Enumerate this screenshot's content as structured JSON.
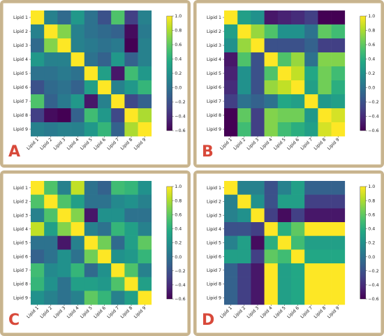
{
  "colormap": {
    "name": "viridis",
    "stops": [
      "#440154",
      "#482475",
      "#414487",
      "#355f8d",
      "#2a788e",
      "#21918c",
      "#22a884",
      "#44bf70",
      "#7ad151",
      "#bddf26",
      "#fde725"
    ]
  },
  "frame_color": "#c8b48e",
  "letter_color": "#d8493a",
  "chart_data": [
    {
      "type": "heatmap",
      "panel": "A",
      "rows": [
        "Lipid 1",
        "Lipid 2",
        "Lipid 3",
        "Lipid 4",
        "Lipid 5",
        "Lipid 6",
        "Lipid 7",
        "Lipid 8",
        "Lipid 9"
      ],
      "cols": [
        "Lipid 1",
        "Lipid 2",
        "Lipid 3",
        "Lipid 4",
        "Lipid 5",
        "Lipid 6",
        "Lipid 7",
        "Lipid 8",
        "Lipid 9"
      ],
      "vmin": -0.6,
      "vmax": 1.0,
      "colorbar_ticks": [
        "1.0",
        "0.8",
        "0.6",
        "0.4",
        "0.2",
        "0.0",
        "−0.2",
        "−0.4",
        "−0.6"
      ],
      "values": [
        [
          1.0,
          0.1,
          -0.05,
          0.25,
          0.0,
          -0.2,
          0.55,
          -0.3,
          0.1
        ],
        [
          0.1,
          1.0,
          0.7,
          0.1,
          0.0,
          -0.05,
          -0.1,
          -0.55,
          0.05
        ],
        [
          -0.05,
          0.7,
          1.0,
          0.1,
          0.05,
          0.0,
          0.05,
          -0.6,
          0.1
        ],
        [
          0.25,
          0.1,
          0.1,
          1.0,
          0.0,
          -0.1,
          0.25,
          -0.1,
          0.1
        ],
        [
          0.0,
          0.0,
          0.05,
          0.0,
          1.0,
          0.3,
          -0.5,
          0.5,
          0.25
        ],
        [
          -0.2,
          -0.05,
          0.0,
          -0.1,
          0.3,
          1.0,
          0.1,
          0.25,
          0.45
        ],
        [
          0.55,
          -0.1,
          0.05,
          0.25,
          -0.5,
          0.1,
          1.0,
          -0.25,
          -0.1
        ],
        [
          -0.3,
          -0.55,
          -0.6,
          -0.1,
          0.5,
          0.25,
          -0.25,
          1.0,
          0.8
        ],
        [
          0.1,
          0.05,
          0.1,
          0.1,
          0.25,
          0.45,
          -0.1,
          0.8,
          1.0
        ]
      ]
    },
    {
      "type": "heatmap",
      "panel": "B",
      "rows": [
        "Lipid 1",
        "Lipid 2",
        "Lipid 3",
        "Lipid 4",
        "Lipid 5",
        "Lipid 6",
        "Lipid 7",
        "Lipid 8",
        "Lipid 9"
      ],
      "cols": [
        "Lipid 1",
        "Lipid 2",
        "Lipid 3",
        "Lipid 4",
        "Lipid 5",
        "Lipid 6",
        "Lipid 7",
        "Lipid 8",
        "Lipid 9"
      ],
      "vmin": -0.6,
      "vmax": 1.0,
      "colorbar_ticks": [
        "1.0",
        "0.8",
        "0.6",
        "0.4",
        "0.2",
        "0.0",
        "−0.2",
        "−0.4",
        "−0.6"
      ],
      "values": [
        [
          1.0,
          0.3,
          0.2,
          -0.5,
          -0.45,
          -0.4,
          -0.3,
          -0.6,
          -0.6
        ],
        [
          0.3,
          1.0,
          0.75,
          0.55,
          0.2,
          0.2,
          0.0,
          0.6,
          0.5
        ],
        [
          0.2,
          0.75,
          1.0,
          -0.2,
          -0.2,
          -0.2,
          -0.1,
          -0.3,
          -0.3
        ],
        [
          -0.5,
          0.55,
          -0.2,
          1.0,
          0.55,
          0.75,
          0.0,
          0.7,
          0.7
        ],
        [
          -0.45,
          0.2,
          -0.2,
          0.55,
          1.0,
          0.85,
          0.35,
          0.65,
          0.5
        ],
        [
          -0.4,
          0.2,
          -0.2,
          0.75,
          0.85,
          1.0,
          0.3,
          0.65,
          0.4
        ],
        [
          -0.3,
          0.0,
          -0.1,
          0.0,
          0.35,
          0.3,
          1.0,
          0.25,
          0.3
        ],
        [
          -0.6,
          0.6,
          -0.3,
          0.7,
          0.65,
          0.65,
          0.25,
          1.0,
          0.9
        ],
        [
          -0.6,
          0.5,
          -0.3,
          0.7,
          0.5,
          0.4,
          0.3,
          0.9,
          1.0
        ]
      ]
    },
    {
      "type": "heatmap",
      "panel": "C",
      "rows": [
        "Lipid 1",
        "Lipid 2",
        "Lipid 3",
        "Lipid 4",
        "Lipid 5",
        "Lipid 6",
        "Lipid 7",
        "Lipid 8",
        "Lipid 9"
      ],
      "cols": [
        "Lipid 1",
        "Lipid 2",
        "Lipid 3",
        "Lipid 4",
        "Lipid 5",
        "Lipid 6",
        "Lipid 7",
        "Lipid 8",
        "Lipid 9"
      ],
      "vmin": -0.6,
      "vmax": 1.0,
      "colorbar_ticks": [
        "1.0",
        "0.8",
        "0.6",
        "0.4",
        "0.2",
        "0.0",
        "−0.2",
        "−0.4",
        "−0.6"
      ],
      "values": [
        [
          1.0,
          0.55,
          0.1,
          0.85,
          0.0,
          -0.1,
          0.5,
          0.45,
          0.2
        ],
        [
          0.55,
          1.0,
          0.55,
          0.3,
          0.0,
          0.0,
          0.15,
          0.2,
          0.1
        ],
        [
          0.1,
          0.55,
          1.0,
          0.7,
          -0.5,
          0.2,
          0.2,
          0.0,
          0.0
        ],
        [
          0.85,
          0.3,
          0.7,
          1.0,
          0.1,
          0.0,
          0.45,
          0.3,
          0.1
        ],
        [
          0.0,
          0.0,
          -0.5,
          0.1,
          1.0,
          0.65,
          -0.05,
          0.3,
          0.6
        ],
        [
          -0.1,
          0.0,
          0.2,
          0.0,
          0.65,
          1.0,
          0.2,
          0.25,
          0.45
        ],
        [
          0.5,
          0.15,
          0.2,
          0.45,
          -0.05,
          0.2,
          1.0,
          0.55,
          0.1
        ],
        [
          0.45,
          0.2,
          0.0,
          0.3,
          0.3,
          0.25,
          0.55,
          1.0,
          0.3
        ],
        [
          0.2,
          0.1,
          0.0,
          0.1,
          0.6,
          0.45,
          0.1,
          0.3,
          1.0
        ]
      ]
    },
    {
      "type": "heatmap",
      "panel": "D",
      "rows": [
        "Lipid 1",
        "Lipid 2",
        "Lipid 3",
        "Lipid 4",
        "Lipid 5",
        "Lipid 6",
        "Lipid 7",
        "Lipid 8",
        "Lipid 9"
      ],
      "cols": [
        "Lipid 1",
        "Lipid 2",
        "Lipid 3",
        "Lipid 4",
        "Lipid 5",
        "Lipid 6",
        "Lipid 7",
        "Lipid 8",
        "Lipid 9"
      ],
      "vmin": -0.6,
      "vmax": 1.0,
      "colorbar_ticks": [
        "1.0",
        "0.8",
        "0.6",
        "0.4",
        "0.2",
        "0.0",
        "−0.2",
        "−0.4",
        "−0.6"
      ],
      "values": [
        [
          1.0,
          0.1,
          0.1,
          -0.2,
          0.1,
          0.3,
          -0.1,
          -0.1,
          -0.1
        ],
        [
          0.1,
          1.0,
          0.2,
          -0.2,
          0.3,
          0.3,
          -0.3,
          -0.3,
          -0.3
        ],
        [
          0.1,
          0.2,
          1.0,
          -0.3,
          -0.55,
          -0.3,
          -0.5,
          -0.5,
          -0.5
        ],
        [
          -0.2,
          -0.2,
          -0.3,
          1.0,
          0.4,
          0.6,
          1.0,
          1.0,
          1.0
        ],
        [
          0.1,
          0.3,
          -0.55,
          0.4,
          1.0,
          0.5,
          0.3,
          0.3,
          0.3
        ],
        [
          0.3,
          0.3,
          -0.3,
          0.6,
          0.5,
          1.0,
          0.35,
          0.35,
          0.35
        ],
        [
          -0.1,
          -0.3,
          -0.5,
          1.0,
          0.3,
          0.35,
          1.0,
          1.0,
          1.0
        ],
        [
          -0.1,
          -0.3,
          -0.5,
          1.0,
          0.3,
          0.35,
          1.0,
          1.0,
          1.0
        ],
        [
          -0.1,
          -0.3,
          -0.5,
          1.0,
          0.3,
          0.35,
          1.0,
          1.0,
          1.0
        ]
      ]
    }
  ]
}
